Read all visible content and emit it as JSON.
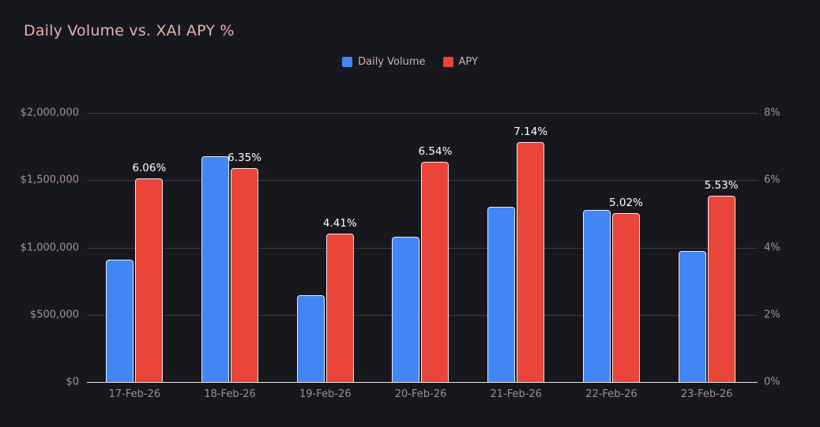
{
  "chart_data": {
    "type": "bar",
    "title": "Daily Volume vs. XAI APY %",
    "categories": [
      "17-Feb-26",
      "18-Feb-26",
      "19-Feb-26",
      "20-Feb-26",
      "21-Feb-26",
      "22-Feb-26",
      "23-Feb-26"
    ],
    "series": [
      {
        "name": "Daily Volume",
        "axis": "left",
        "color": "#4285f4",
        "values": [
          910000,
          1675000,
          645000,
          1080000,
          1305000,
          1280000,
          975000
        ]
      },
      {
        "name": "APY",
        "axis": "right",
        "color": "#e9453a",
        "values": [
          6.06,
          6.35,
          4.41,
          6.54,
          7.14,
          5.02,
          5.53
        ],
        "labels": [
          "6.06%",
          "6.35%",
          "4.41%",
          "6.54%",
          "7.14%",
          "5.02%",
          "5.53%"
        ]
      }
    ],
    "left_axis": {
      "range": [
        0,
        2000000
      ],
      "ticks": [
        "$2,000,000",
        "$1,500,000",
        "$1,000,000",
        "$500,000",
        "$0"
      ]
    },
    "right_axis": {
      "range": [
        0,
        8
      ],
      "ticks": [
        "8%",
        "6%",
        "4%",
        "2%",
        "0%"
      ]
    },
    "legend_position": "top-center",
    "grid": true
  },
  "colors": {
    "background": "#16181e",
    "title": "#e9aeae",
    "axis_labels": "#ab9192",
    "legend_text": "#c9b3b3",
    "gridline": "#3a3d43",
    "axis_line": "#e8e5e1",
    "data_label": "#ffffff",
    "blue": "#4285f4",
    "red": "#e9453a"
  }
}
